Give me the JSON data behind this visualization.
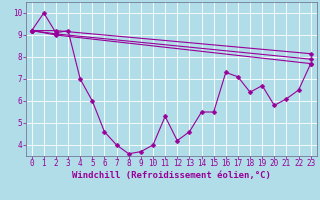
{
  "xlabel": "Windchill (Refroidissement éolien,°C)",
  "background_color": "#b0dde8",
  "line_color": "#990099",
  "grid_color": "#ffffff",
  "xlim": [
    -0.5,
    23.5
  ],
  "ylim": [
    3.5,
    10.5
  ],
  "yticks": [
    4,
    5,
    6,
    7,
    8,
    9,
    10
  ],
  "xticks": [
    0,
    1,
    2,
    3,
    4,
    5,
    6,
    7,
    8,
    9,
    10,
    11,
    12,
    13,
    14,
    15,
    16,
    17,
    18,
    19,
    20,
    21,
    22,
    23
  ],
  "series1_x": [
    0,
    1,
    2,
    3,
    4,
    5,
    6,
    7,
    8,
    9,
    10,
    11,
    12,
    13,
    14,
    15,
    16,
    17,
    18,
    19,
    20,
    21,
    22,
    23
  ],
  "series1_y": [
    9.2,
    10.0,
    9.1,
    9.2,
    7.0,
    6.0,
    4.6,
    4.0,
    3.6,
    3.7,
    4.0,
    5.3,
    4.2,
    4.6,
    5.5,
    5.5,
    7.3,
    7.1,
    6.4,
    6.7,
    5.8,
    6.1,
    6.5,
    7.7
  ],
  "line2_x": [
    0,
    2,
    23
  ],
  "line2_y": [
    9.2,
    9.2,
    8.15
  ],
  "line3_x": [
    0,
    2,
    23
  ],
  "line3_y": [
    9.2,
    9.05,
    7.9
  ],
  "line4_x": [
    0,
    2,
    23
  ],
  "line4_y": [
    9.2,
    9.0,
    7.7
  ],
  "markersize": 2.5,
  "linewidth": 0.8,
  "xlabel_fontsize": 6.5,
  "tick_fontsize": 5.5
}
